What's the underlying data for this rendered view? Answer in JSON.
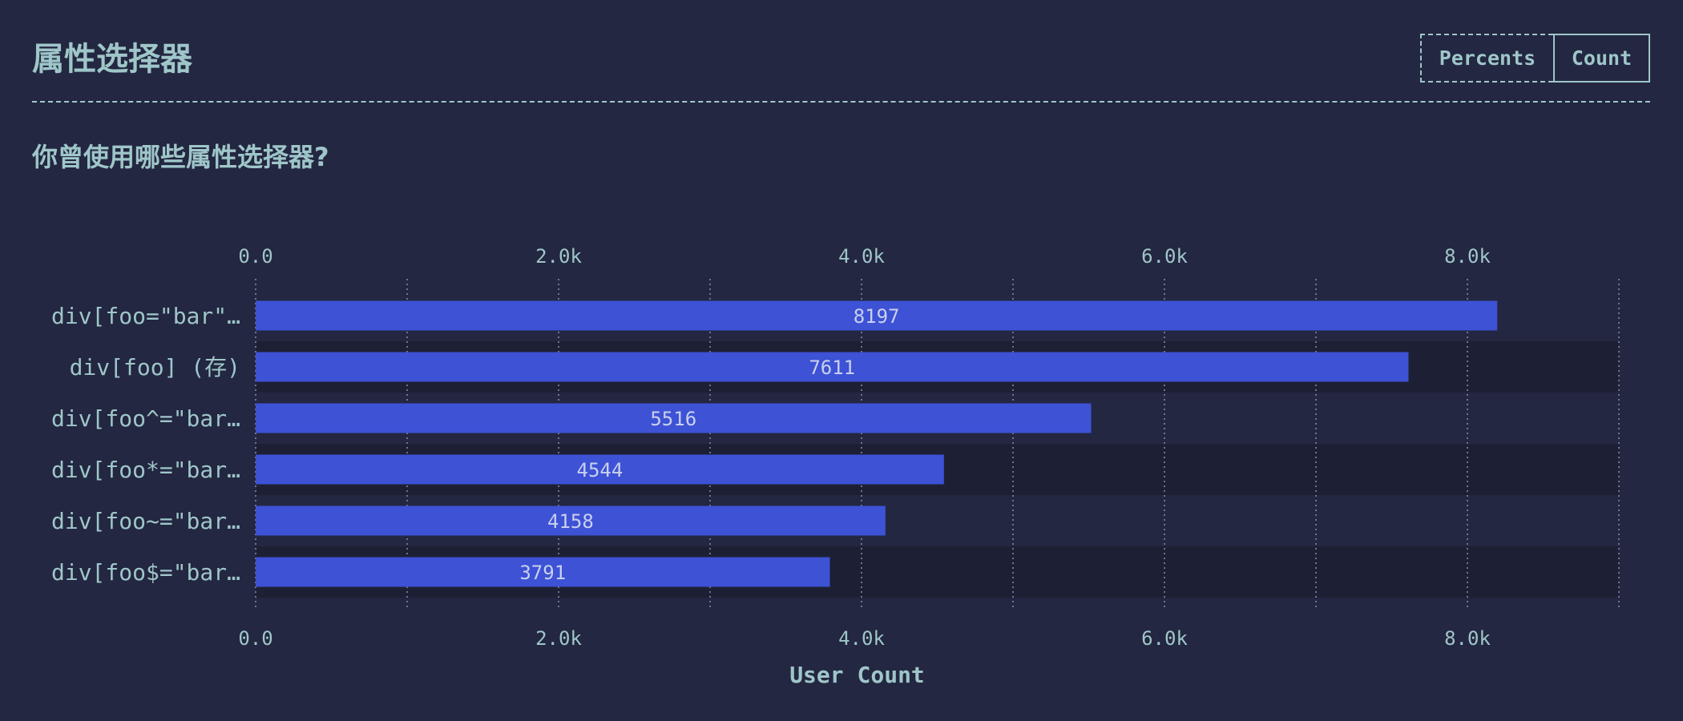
{
  "section": {
    "title": "属性选择器"
  },
  "toggle": {
    "percents_label": "Percents",
    "count_label": "Count",
    "selected": "Count"
  },
  "question": "你曾使用哪些属性选择器?",
  "colors": {
    "background": "#232741",
    "text": "#9fc6c9",
    "bar": "#3d52d5",
    "row_alt": "#1d2034",
    "grid": "#8a8fa8"
  },
  "chart_data": {
    "type": "bar",
    "orientation": "horizontal",
    "categories": [
      "div[foo=\"bar\"…",
      "div[foo] (存)",
      "div[foo^=\"bar…",
      "div[foo*=\"bar…",
      "div[foo~=\"bar…",
      "div[foo$=\"bar…"
    ],
    "values": [
      8197,
      7611,
      5516,
      4544,
      4158,
      3791
    ],
    "value_labels": [
      "8197",
      "7611",
      "5516",
      "4544",
      "4158",
      "3791"
    ],
    "xlim": [
      0,
      9000
    ],
    "xticks": [
      0,
      2000,
      4000,
      6000,
      8000
    ],
    "xtick_labels": [
      "0.0",
      "2.0k",
      "4.0k",
      "6.0k",
      "8.0k"
    ],
    "minor_grid": [
      1000,
      3000,
      5000,
      7000,
      9000
    ],
    "xlabel": "User Count",
    "grid": true
  }
}
